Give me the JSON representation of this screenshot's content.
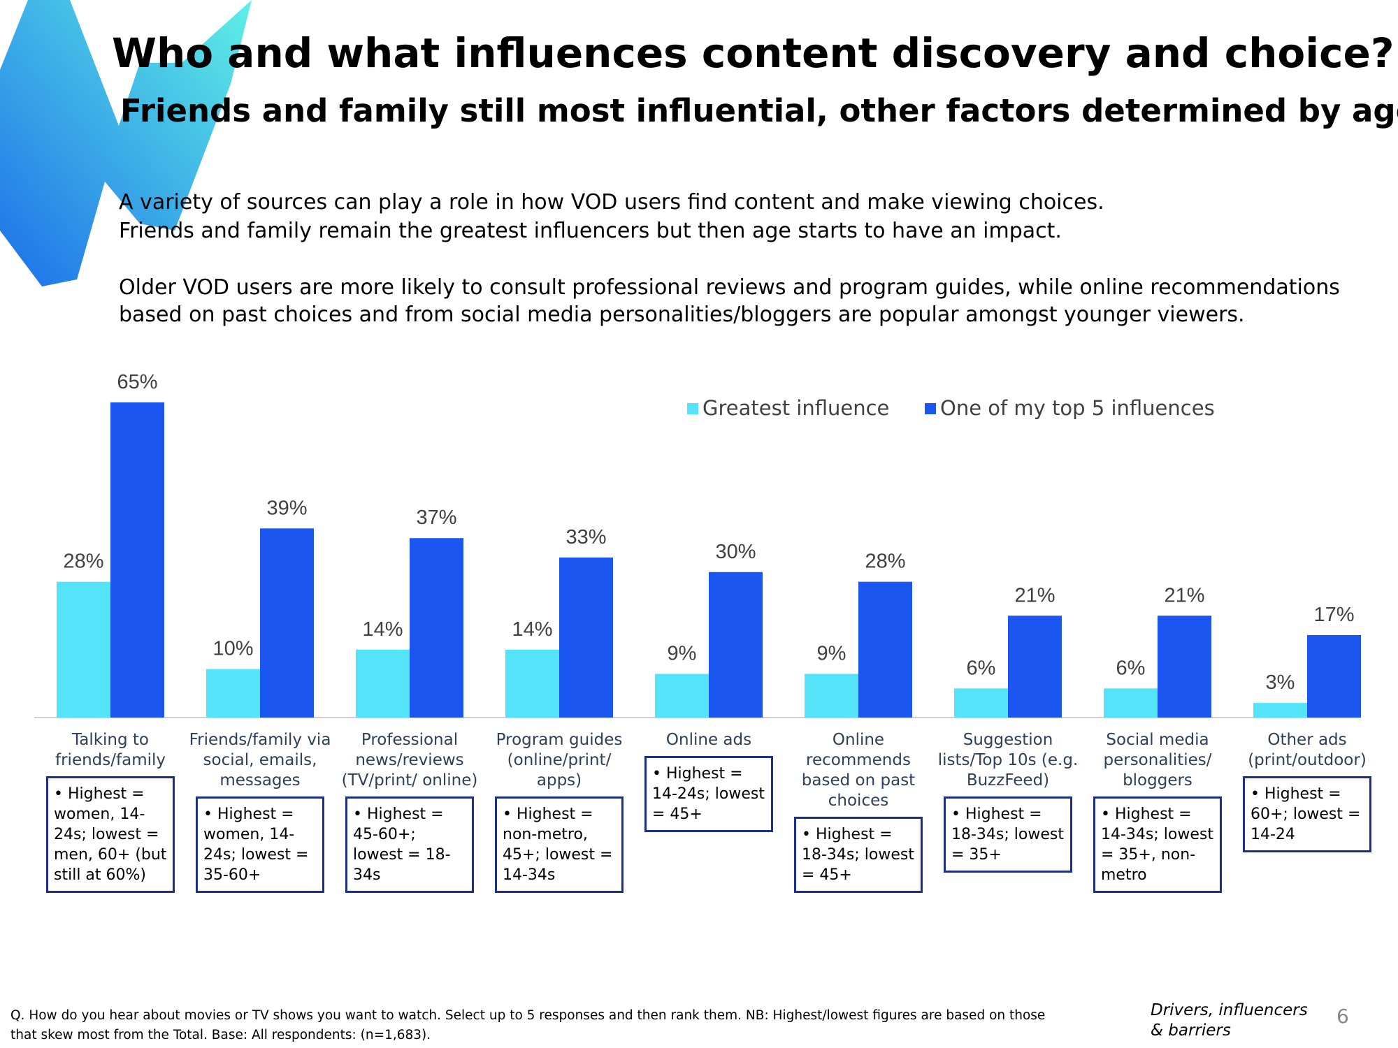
{
  "chart_data": {
    "type": "bar",
    "title": "Who and what influences content discovery and choice?",
    "subtitle": "Friends and family still most influential, other factors determined by age",
    "body": [
      "A variety of sources can play a role in how VOD users find content and make viewing choices.",
      "Friends and family remain the greatest influencers but then age starts to have an impact.",
      "Older VOD users are more likely to consult professional reviews and program guides, while online recommendations",
      "based on past choices and from social media personalities/bloggers are popular amongst younger viewers."
    ],
    "categories": [
      "Talking to friends/family",
      "Friends/family via social, emails, messages",
      "Professional news/reviews (TV/print/ online)",
      "Program guides (online/print/ apps)",
      "Online ads",
      "Online recommends based on past choices",
      "Suggestion lists/Top 10s (e.g. BuzzFeed)",
      "Social media personalities/ bloggers",
      "Other ads (print/outdoor)"
    ],
    "series": [
      {
        "name": "Greatest influence",
        "color": "#55e3f9",
        "values": [
          28,
          10,
          14,
          14,
          9,
          9,
          6,
          6,
          3
        ],
        "value_labels": [
          "28%",
          "10%",
          "14%",
          "14%",
          "9%",
          "9%",
          "6%",
          "6%",
          "3%"
        ]
      },
      {
        "name": "One of my top 5 influences",
        "color": "#1a56ef",
        "values": [
          65,
          39,
          37,
          33,
          30,
          28,
          21,
          21,
          17
        ],
        "value_labels": [
          "65%",
          "39%",
          "37%",
          "33%",
          "30%",
          "28%",
          "21%",
          "21%",
          "17%"
        ]
      }
    ],
    "notes": [
      "Highest = women, 14-24s; lowest = men, 60+ (but still at 60%)",
      "Highest = women, 14-24s; lowest = 35-60+",
      "Highest = 45-60+; lowest = 18-34s",
      "Highest = non-metro, 45+; lowest = 14-34s",
      "Highest = 14-24s; lowest = 45+",
      "Highest = 18-34s; lowest = 45+",
      "Highest = 18-34s; lowest = 35+",
      "Highest = 14-34s; lowest = 35+, non-metro",
      "Highest = 60+; lowest = 14-24"
    ],
    "footnote": [
      "Q. How do you hear about movies or TV shows you want to watch. Select up to 5 responses and then rank them. NB: Highest/lowest figures are based on those",
      "that skew most from the Total. Base: All respondents: (n=1,683)."
    ],
    "section": [
      "Drivers, influencers",
      "& barriers"
    ],
    "page": "6"
  }
}
